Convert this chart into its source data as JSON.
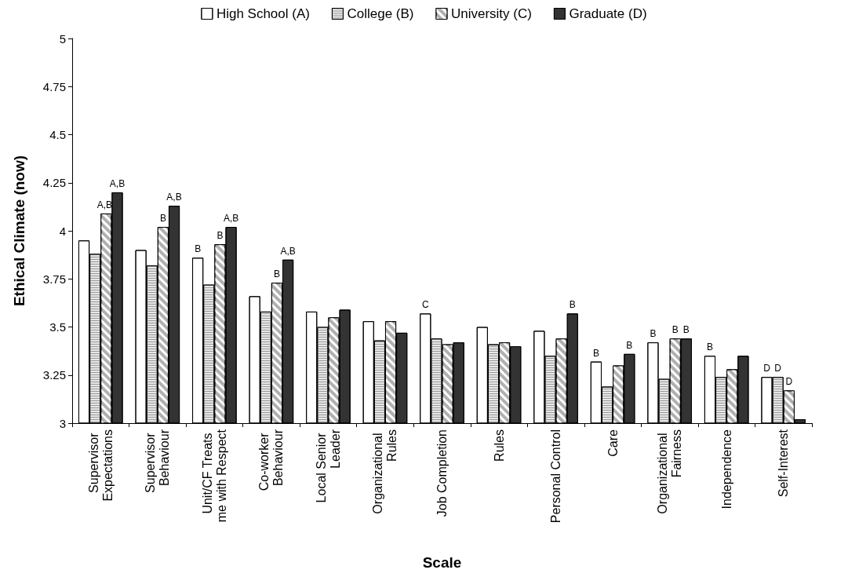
{
  "chart_data": {
    "type": "bar",
    "xlabel": "Scale",
    "ylabel": "Ethical Climate (now)",
    "categories": [
      "Supervisor Expectations",
      "Supervisor Behaviour",
      "Unit/CF Treats me with Respect",
      "Co-worker Behaviour",
      "Local Senior Leader",
      "Organizational Rules",
      "Job Completion",
      "Rules",
      "Personal Control",
      "Care",
      "Organizational Fairness",
      "Independence",
      "Self-Interest"
    ],
    "series": [
      {
        "name": "High School (A)",
        "color": "#ffffff",
        "values": [
          3.95,
          3.9,
          3.86,
          3.66,
          3.58,
          3.53,
          3.57,
          3.5,
          3.48,
          3.32,
          3.42,
          3.35,
          3.24
        ],
        "value_labels": [
          null,
          null,
          "B",
          null,
          null,
          null,
          "C",
          null,
          null,
          "B",
          "B",
          "B",
          "D"
        ]
      },
      {
        "name": "College (B)",
        "color": "#e6e6e6",
        "values": [
          3.88,
          3.82,
          3.72,
          3.58,
          3.5,
          3.43,
          3.44,
          3.41,
          3.35,
          3.19,
          3.23,
          3.24,
          3.24
        ],
        "value_labels": [
          null,
          null,
          null,
          null,
          null,
          null,
          null,
          null,
          null,
          null,
          null,
          null,
          "D"
        ]
      },
      {
        "name": "University (C)",
        "color": "#b0b0b0",
        "values": [
          4.09,
          4.02,
          3.93,
          3.73,
          3.55,
          3.53,
          3.41,
          3.42,
          3.44,
          3.3,
          3.44,
          3.28,
          3.17
        ],
        "value_labels": [
          "A,B",
          "B",
          "B",
          "B",
          null,
          null,
          null,
          null,
          null,
          null,
          "B",
          null,
          "D"
        ]
      },
      {
        "name": "Graduate (D)",
        "color": "#333333",
        "values": [
          4.2,
          4.13,
          4.02,
          3.85,
          3.59,
          3.47,
          3.42,
          3.4,
          3.57,
          3.36,
          3.44,
          3.35,
          3.02
        ],
        "value_labels": [
          "A,B",
          "A,B",
          "A,B",
          "A,B",
          null,
          null,
          null,
          null,
          "B",
          "B",
          "B",
          null,
          null
        ]
      }
    ],
    "ylim": [
      3,
      5
    ],
    "yticks": [
      3,
      3.25,
      3.5,
      3.75,
      4,
      4.25,
      4.5,
      4.75,
      5
    ],
    "grid": false,
    "legend": "top"
  }
}
